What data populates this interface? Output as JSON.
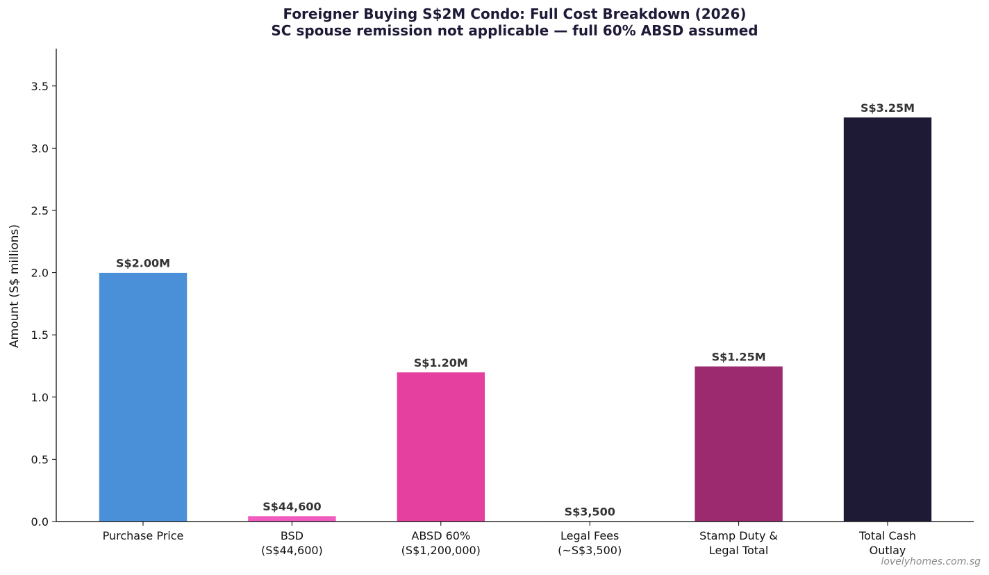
{
  "chart_data": {
    "type": "bar",
    "title": "Foreigner Buying S$2M Condo: Full Cost Breakdown (2026)",
    "subtitle": "SC spouse remission not applicable — full 60% ABSD assumed",
    "xlabel": "",
    "ylabel": "Amount (S$ millions)",
    "ylim": [
      0,
      3.8
    ],
    "yticks": [
      0.0,
      0.5,
      1.0,
      1.5,
      2.0,
      2.5,
      3.0,
      3.5
    ],
    "ytick_labels": [
      "0.0",
      "0.5",
      "1.0",
      "1.5",
      "2.0",
      "2.5",
      "3.0",
      "3.5"
    ],
    "grid": false,
    "categories": [
      [
        "Purchase Price"
      ],
      [
        "BSD",
        "(S$44,600)"
      ],
      [
        "ABSD 60%",
        "(S$1,200,000)"
      ],
      [
        "Legal Fees",
        "(~S$3,500)"
      ],
      [
        "Stamp Duty &",
        "Legal Total"
      ],
      [
        "Total Cash",
        "Outlay"
      ]
    ],
    "values": [
      2.0,
      0.0446,
      1.2,
      0.0035,
      1.2481,
      3.2481
    ],
    "data_labels": [
      "S$2.00M",
      "S$44,600",
      "S$1.20M",
      "S$3,500",
      "S$1.25M",
      "S$3.25M"
    ],
    "colors": [
      "#4a90d9",
      "#f25bbf",
      "#e5409f",
      "#c2a0c8",
      "#9b2a6f",
      "#1e1a35"
    ]
  },
  "watermark": "lovelyhomes.com.sg"
}
